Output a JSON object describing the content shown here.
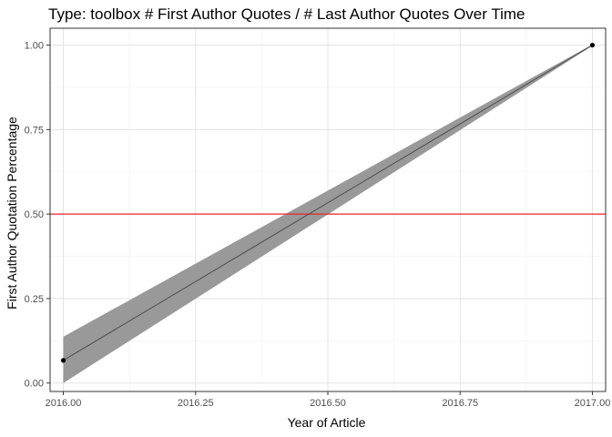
{
  "chart_data": {
    "type": "line",
    "title": "Type: toolbox # First Author Quotes /  # Last Author Quotes Over Time",
    "xlabel": "Year of Article",
    "ylabel": "First Author Quotation Percentage",
    "xlim": [
      2015.975,
      2017.025
    ],
    "ylim": [
      -0.025,
      1.05
    ],
    "x_ticks": [
      2016.0,
      2016.25,
      2016.5,
      2016.75,
      2017.0
    ],
    "x_tick_labels": [
      "2016.00",
      "2016.25",
      "2016.50",
      "2016.75",
      "2017.00"
    ],
    "y_ticks": [
      0.0,
      0.25,
      0.5,
      0.75,
      1.0
    ],
    "y_tick_labels": [
      "0.00",
      "0.25",
      "0.50",
      "0.75",
      "1.00"
    ],
    "grid": true,
    "points": [
      {
        "x": 2016.0,
        "y": 0.067
      },
      {
        "x": 2017.0,
        "y": 1.0
      }
    ],
    "fit_line": [
      {
        "x": 2016.0,
        "y": 0.067
      },
      {
        "x": 2017.0,
        "y": 1.0
      }
    ],
    "confidence_band": {
      "x": [
        2016.0,
        2017.0
      ],
      "lower": [
        0.0,
        0.998
      ],
      "upper": [
        0.137,
        1.002
      ]
    },
    "reference_line": {
      "y": 0.5,
      "color": "#e8262a"
    },
    "colors": {
      "band": "#999999",
      "fit_line": "#4d4d4d",
      "points": "#000000",
      "grid_major": "#e3e3e3",
      "grid_minor": "#f0f0f0",
      "panel_border": "#333333"
    }
  }
}
